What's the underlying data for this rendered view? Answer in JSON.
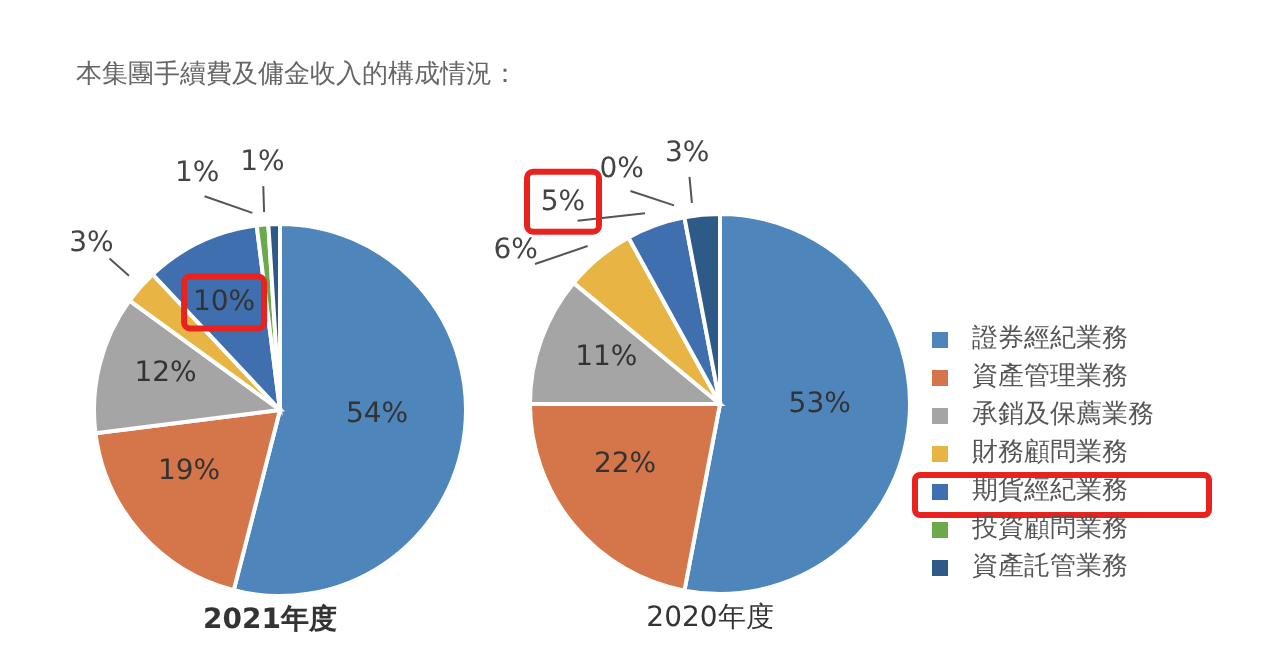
{
  "chart_data": [
    {
      "type": "pie",
      "title": "本集團手續費及傭金收入的構成情況：",
      "xlabel": "2021年度",
      "categories": [
        null,
        null,
        null,
        null,
        null,
        null,
        null
      ],
      "values": [
        54,
        19,
        12,
        3,
        10,
        1,
        1
      ],
      "colors": [
        "#4e86bb",
        "#d5764a",
        "#a5a5a5",
        "#e8b544",
        "#3f6fae",
        "#6aaa4a",
        "#2d5a86"
      ],
      "legend": false,
      "value_labels": [
        "54%",
        "19%",
        "12%",
        "3%",
        "10%",
        "1%",
        "1%"
      ]
    },
    {
      "type": "pie",
      "xlabel": "2020年度",
      "categories": [
        "證券經紀業務",
        "資產管理業務",
        "承銷及保薦業務",
        "財務顧問業務",
        "期貨經紀業務",
        "投資顧問業務",
        "資產託管業務"
      ],
      "values": [
        53,
        22,
        11,
        6,
        5,
        0,
        3
      ],
      "colors": [
        "#4e86bb",
        "#d5764a",
        "#a5a5a5",
        "#e8b544",
        "#3f6fae",
        "#6aaa4a",
        "#2d5a86"
      ],
      "legend": "right",
      "value_labels": [
        "53%",
        "22%",
        "11%",
        "6%",
        "5%",
        "0%",
        "3%"
      ]
    }
  ]
}
